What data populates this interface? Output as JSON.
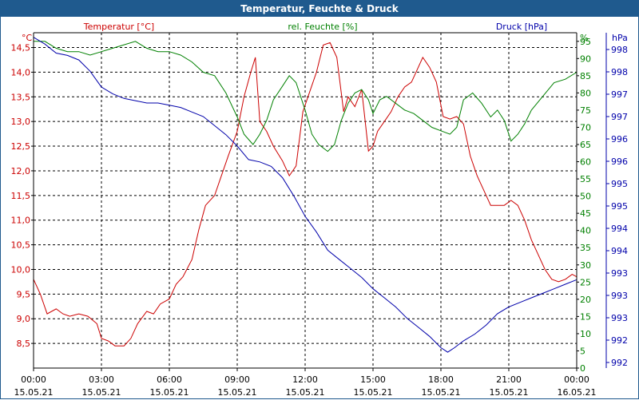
{
  "window": {
    "title": "Temperatur, Feuchte & Druck"
  },
  "chart_data": {
    "type": "line",
    "title": "Temperatur, Feuchte & Druck",
    "x_labels": [
      {
        "time": "00:00",
        "date": "15.05.21"
      },
      {
        "time": "03:00",
        "date": "15.05.21"
      },
      {
        "time": "06:00",
        "date": "15.05.21"
      },
      {
        "time": "09:00",
        "date": "15.05.21"
      },
      {
        "time": "12:00",
        "date": "15.05.21"
      },
      {
        "time": "15:00",
        "date": "15.05.21"
      },
      {
        "time": "18:00",
        "date": "15.05.21"
      },
      {
        "time": "21:00",
        "date": "15.05.21"
      },
      {
        "time": "00:00",
        "date": "16.05.21"
      }
    ],
    "xlim": [
      0,
      24
    ],
    "axes": {
      "temperature": {
        "unit": "°C",
        "label": "Temperatur [°C]",
        "color": "#cc0000",
        "ylim": [
          8.0,
          14.8
        ],
        "ticks": [
          "8,5",
          "9,0",
          "9,5",
          "10,0",
          "10,5",
          "11,0",
          "11,5",
          "12,0",
          "12,5",
          "13,0",
          "13,5",
          "14,0",
          "14,5"
        ]
      },
      "humidity": {
        "unit": "%",
        "label": "rel. Feuchte [%]",
        "color": "#008000",
        "ylim": [
          0,
          97.5
        ],
        "ticks": [
          "0",
          "5",
          "10",
          "15",
          "20",
          "25",
          "30",
          "35",
          "40",
          "45",
          "50",
          "55",
          "60",
          "65",
          "70",
          "75",
          "80",
          "85",
          "90",
          "95"
        ]
      },
      "pressure": {
        "unit": "hPa",
        "label": "Druck [hPa]",
        "color": "#0000aa",
        "ylim": [
          991.4,
          998.8
        ],
        "ticks": [
          "992",
          "992",
          "993",
          "993",
          "993",
          "994",
          "994",
          "995",
          "995",
          "996",
          "996",
          "997",
          "997",
          "998",
          "998"
        ]
      }
    },
    "series": [
      {
        "name": "Temperatur",
        "axis": "temperature",
        "color": "#cc0000",
        "x": [
          0,
          0.3,
          0.6,
          1,
          1.3,
          1.6,
          2,
          2.4,
          2.8,
          3,
          3.3,
          3.6,
          4,
          4.3,
          4.6,
          5,
          5.3,
          5.6,
          6,
          6.3,
          6.6,
          7,
          7.3,
          7.6,
          8,
          8.3,
          8.6,
          9,
          9.3,
          9.6,
          9.8,
          10,
          10.3,
          10.6,
          11,
          11.3,
          11.6,
          11.9,
          12.2,
          12.5,
          12.8,
          13.1,
          13.4,
          13.7,
          13.9,
          14.2,
          14.5,
          14.8,
          15,
          15.2,
          15.5,
          15.8,
          16.1,
          16.4,
          16.7,
          17,
          17.2,
          17.5,
          17.8,
          18.1,
          18.4,
          18.7,
          19,
          19.3,
          19.6,
          19.9,
          20.2,
          20.5,
          20.8,
          21.1,
          21.4,
          21.7,
          22,
          22.3,
          22.6,
          22.9,
          23.2,
          23.5,
          23.8,
          24
        ],
        "y": [
          9.8,
          9.5,
          9.1,
          9.2,
          9.1,
          9.05,
          9.1,
          9.05,
          8.9,
          8.6,
          8.55,
          8.45,
          8.45,
          8.6,
          8.9,
          9.15,
          9.1,
          9.3,
          9.4,
          9.7,
          9.85,
          10.2,
          10.8,
          11.3,
          11.5,
          11.9,
          12.3,
          12.8,
          13.5,
          14.0,
          14.3,
          13.0,
          12.8,
          12.5,
          12.2,
          11.9,
          12.1,
          13.2,
          13.6,
          14.0,
          14.55,
          14.6,
          14.3,
          13.2,
          13.5,
          13.3,
          13.65,
          12.4,
          12.5,
          12.8,
          13.0,
          13.2,
          13.5,
          13.7,
          13.8,
          14.1,
          14.3,
          14.1,
          13.8,
          13.1,
          13.05,
          13.1,
          12.95,
          12.3,
          11.9,
          11.6,
          11.3,
          11.3,
          11.3,
          11.4,
          11.3,
          11.0,
          10.6,
          10.3,
          10.0,
          9.8,
          9.75,
          9.8,
          9.9,
          9.85
        ]
      },
      {
        "name": "rel. Feuchte",
        "axis": "humidity",
        "color": "#008000",
        "x": [
          0,
          0.5,
          1,
          1.5,
          2,
          2.5,
          3,
          3.5,
          4,
          4.5,
          5,
          5.5,
          6,
          6.5,
          7,
          7.5,
          8,
          8.5,
          9,
          9.3,
          9.7,
          10,
          10.3,
          10.6,
          11,
          11.3,
          11.6,
          12,
          12.3,
          12.6,
          13,
          13.3,
          13.6,
          13.9,
          14.2,
          14.5,
          14.8,
          15,
          15.3,
          15.6,
          16,
          16.4,
          16.8,
          17.2,
          17.6,
          18,
          18.4,
          18.7,
          19,
          19.4,
          19.8,
          20.2,
          20.5,
          20.8,
          21.1,
          21.4,
          21.7,
          22,
          22.5,
          23,
          23.5,
          24
        ],
        "y": [
          95,
          95,
          93,
          92,
          92,
          91,
          92,
          93,
          94,
          95,
          93,
          92,
          92,
          91,
          89,
          86,
          85,
          80,
          73,
          68,
          65,
          68,
          72,
          78,
          82,
          85,
          83,
          75,
          68,
          65,
          63,
          65,
          72,
          77,
          80,
          81,
          78,
          74,
          78,
          79,
          77,
          75,
          74,
          72,
          70,
          69,
          68,
          70,
          78,
          80,
          77,
          73,
          75,
          72,
          66,
          68,
          71,
          75,
          79,
          83,
          84,
          86
        ]
      },
      {
        "name": "Druck",
        "axis": "pressure",
        "color": "#0000aa",
        "x": [
          0,
          0.5,
          1,
          1.5,
          2,
          2.5,
          3,
          3.5,
          4,
          4.5,
          5,
          5.5,
          6,
          6.5,
          7,
          7.5,
          8,
          8.5,
          9,
          9.5,
          10,
          10.5,
          11,
          11.5,
          12,
          12.5,
          13,
          13.5,
          14,
          14.5,
          15,
          15.5,
          16,
          16.5,
          17,
          17.5,
          18,
          18.3,
          18.6,
          19,
          19.5,
          20,
          20.5,
          21,
          21.5,
          22,
          22.5,
          23,
          23.5,
          24
        ],
        "y": [
          998.7,
          998.55,
          998.35,
          998.3,
          998.2,
          997.95,
          997.6,
          997.45,
          997.35,
          997.3,
          997.25,
          997.25,
          997.2,
          997.15,
          997.05,
          996.95,
          996.75,
          996.55,
          996.3,
          996.0,
          995.95,
          995.85,
          995.6,
          995.2,
          994.75,
          994.4,
          994.0,
          993.8,
          993.6,
          993.4,
          993.15,
          992.95,
          992.75,
          992.5,
          992.3,
          992.1,
          991.85,
          991.75,
          991.85,
          992.0,
          992.15,
          992.35,
          992.6,
          992.75,
          992.85,
          992.95,
          993.05,
          993.15,
          993.25,
          993.35
        ]
      }
    ]
  }
}
